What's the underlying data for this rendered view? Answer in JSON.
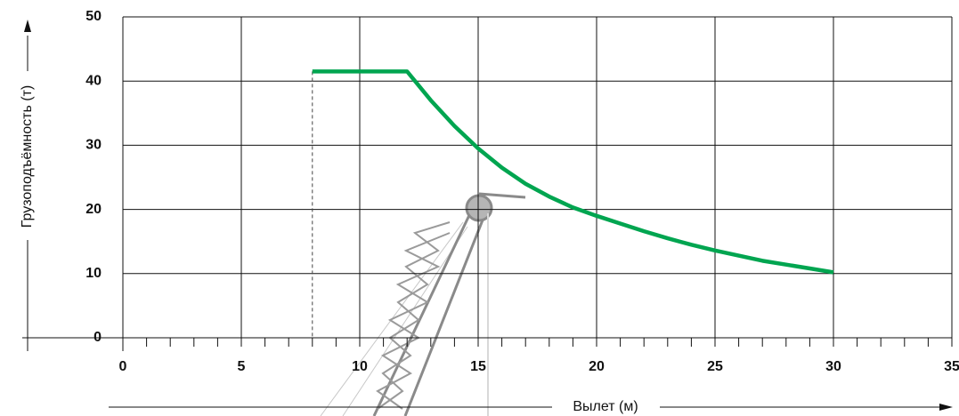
{
  "chart_data": {
    "type": "line",
    "xlabel": "Вылет (м)",
    "ylabel": "Грузоподъёмность (т)",
    "x": [
      8,
      12,
      13,
      14,
      15,
      16,
      17,
      18,
      19,
      20,
      21,
      22,
      23,
      24,
      25,
      26,
      27,
      28,
      29,
      30
    ],
    "values": [
      41.5,
      41.5,
      37,
      33,
      29.5,
      26.5,
      24,
      22,
      20.3,
      19,
      17.8,
      16.6,
      15.5,
      14.5,
      13.6,
      12.8,
      12,
      11.4,
      10.8,
      10.2
    ],
    "color": "#00a550",
    "xlim": [
      0,
      35
    ],
    "xticks": [
      0,
      5,
      10,
      15,
      20,
      25,
      30,
      35
    ],
    "xminor": 1,
    "ylim": [
      0,
      50
    ],
    "yticks": [
      0,
      10,
      20,
      30,
      40,
      50
    ],
    "grid": true
  }
}
